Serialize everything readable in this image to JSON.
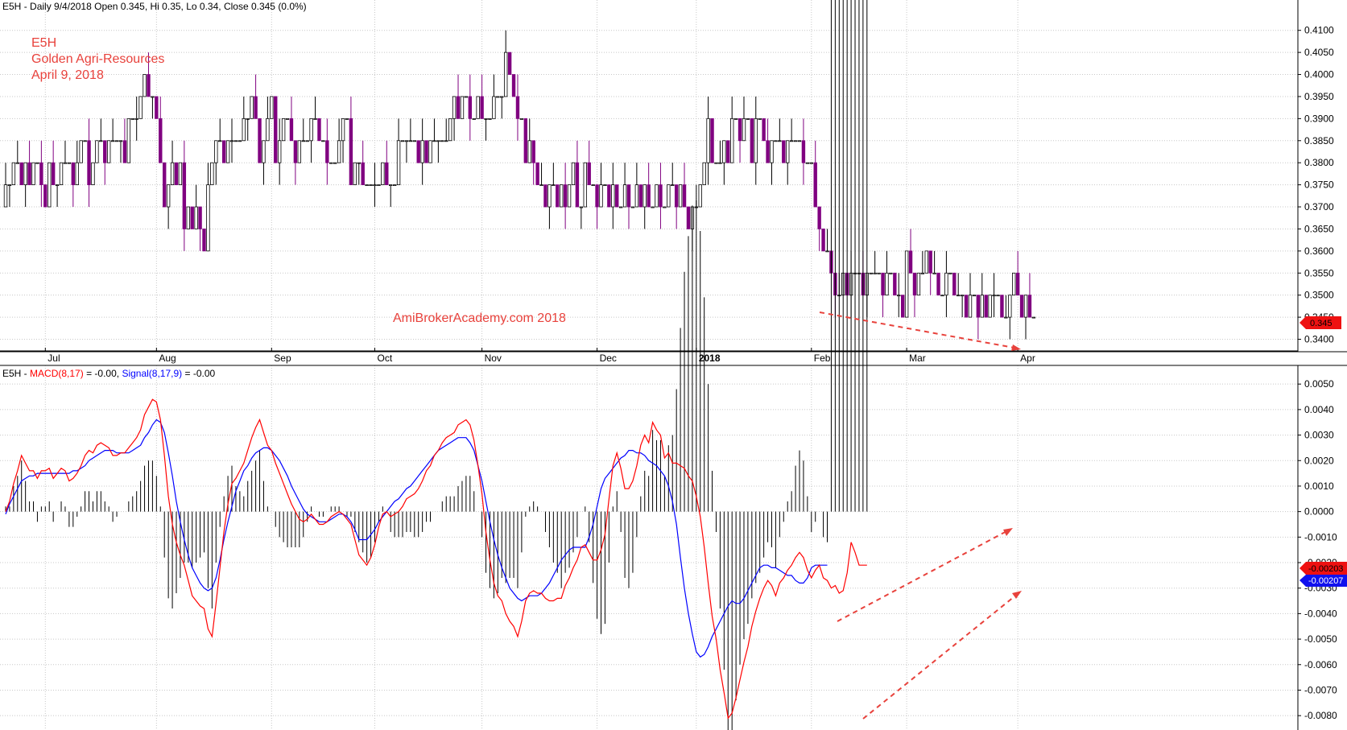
{
  "price_header": {
    "symbol": "E5H",
    "period": "Daily",
    "date": "9/4/2018",
    "open": "Open 0.345,",
    "high": "Hi 0.35,",
    "low": "Lo 0.34,",
    "close": "Close 0.345 (0.0%)"
  },
  "notes": {
    "line1": "E5H",
    "line2": "Golden Agri-Resources",
    "line3": "April 9, 2018",
    "watermark": "AmiBrokerAcademy.com  2018"
  },
  "macd_header": {
    "symbol": "E5H -",
    "macd_label": "MACD(8,17)",
    "macd_value": "= -0.00,",
    "signal_label": "Signal(8,17,9)",
    "signal_value": "= -0.00"
  },
  "price_badge": "0.345",
  "macd_badge": "-0.00203",
  "signal_badge": "-0.00207",
  "colors": {
    "down_bar": "#800080",
    "up_bar": "#000000",
    "macd_line": "#ff0000",
    "signal_line": "#0000ff",
    "histogram": "#000000",
    "grid": "#c8c8c8",
    "annotation": "#e8423c"
  },
  "chart_data": [
    {
      "type": "candlestick",
      "pane": "price",
      "ylim": [
        0.339,
        0.4125
      ],
      "y_ticks": [
        "0.4100",
        "0.4050",
        "0.4000",
        "0.3950",
        "0.3900",
        "0.3850",
        "0.3800",
        "0.3750",
        "0.3700",
        "0.3650",
        "0.3600",
        "0.3550",
        "0.3500",
        "0.3450",
        "0.3400"
      ],
      "x_labels": [
        {
          "label": "Jul",
          "bar": 10
        },
        {
          "label": "Aug",
          "bar": 38
        },
        {
          "label": "Sep",
          "bar": 67
        },
        {
          "label": "Oct",
          "bar": 93
        },
        {
          "label": "Nov",
          "bar": 120
        },
        {
          "label": "Dec",
          "bar": 149
        },
        {
          "label": "2018",
          "bar": 174
        },
        {
          "label": "Feb",
          "bar": 203
        },
        {
          "label": "Mar",
          "bar": 227
        },
        {
          "label": "Apr",
          "bar": 255
        }
      ],
      "closes": [
        0.375,
        0.375,
        0.38,
        0.38,
        0.375,
        0.38,
        0.375,
        0.38,
        0.38,
        0.375,
        0.37,
        0.38,
        0.375,
        0.375,
        0.38,
        0.38,
        0.38,
        0.375,
        0.38,
        0.385,
        0.385,
        0.375,
        0.38,
        0.385,
        0.385,
        0.38,
        0.385,
        0.385,
        0.385,
        0.385,
        0.38,
        0.39,
        0.39,
        0.39,
        0.395,
        0.4,
        0.395,
        0.395,
        0.39,
        0.38,
        0.37,
        0.375,
        0.38,
        0.375,
        0.38,
        0.365,
        0.37,
        0.365,
        0.37,
        0.365,
        0.36,
        0.375,
        0.38,
        0.385,
        0.385,
        0.38,
        0.385,
        0.385,
        0.385,
        0.385,
        0.39,
        0.39,
        0.395,
        0.39,
        0.38,
        0.385,
        0.39,
        0.395,
        0.38,
        0.385,
        0.39,
        0.39,
        0.385,
        0.38,
        0.385,
        0.385,
        0.385,
        0.39,
        0.39,
        0.385,
        0.385,
        0.38,
        0.38,
        0.38,
        0.385,
        0.39,
        0.39,
        0.375,
        0.38,
        0.38,
        0.375,
        0.375,
        0.375,
        0.375,
        0.375,
        0.38,
        0.375,
        0.375,
        0.375,
        0.385,
        0.385,
        0.385,
        0.385,
        0.385,
        0.38,
        0.385,
        0.38,
        0.385,
        0.385,
        0.385,
        0.385,
        0.385,
        0.39,
        0.395,
        0.39,
        0.395,
        0.395,
        0.39,
        0.39,
        0.395,
        0.39,
        0.39,
        0.39,
        0.395,
        0.395,
        0.395,
        0.405,
        0.4,
        0.395,
        0.39,
        0.39,
        0.38,
        0.385,
        0.38,
        0.375,
        0.375,
        0.37,
        0.375,
        0.375,
        0.37,
        0.375,
        0.37,
        0.375,
        0.38,
        0.37,
        0.37,
        0.38,
        0.375,
        0.375,
        0.37,
        0.375,
        0.375,
        0.37,
        0.375,
        0.37,
        0.37,
        0.375,
        0.37,
        0.37,
        0.375,
        0.37,
        0.375,
        0.37,
        0.37,
        0.375,
        0.37,
        0.37,
        0.375,
        0.375,
        0.37,
        0.375,
        0.37,
        0.365,
        0.37,
        0.37,
        0.375,
        0.38,
        0.39,
        0.38,
        0.38,
        0.38,
        0.385,
        0.38,
        0.39,
        0.39,
        0.385,
        0.39,
        0.39,
        0.38,
        0.39,
        0.39,
        0.385,
        0.38,
        0.385,
        0.385,
        0.385,
        0.38,
        0.385,
        0.385,
        0.385,
        0.385,
        0.38,
        0.38,
        0.38,
        0.37,
        0.365,
        0.36,
        0.36,
        0.355,
        0.35,
        0.35,
        0.355,
        0.35,
        0.355,
        0.355,
        0.355,
        0.35,
        0.355,
        0.355,
        0.355,
        0.355,
        0.35,
        0.355,
        0.355,
        0.35,
        0.35,
        0.345,
        0.36,
        0.355,
        0.35,
        0.355,
        0.355,
        0.36,
        0.355,
        0.355,
        0.35,
        0.35,
        0.355,
        0.355,
        0.35,
        0.35,
        0.35,
        0.345,
        0.35,
        0.35,
        0.345,
        0.35,
        0.345,
        0.35,
        0.35,
        0.35,
        0.345,
        0.345,
        0.35,
        0.355,
        0.35,
        0.345,
        0.35,
        0.345,
        0.345
      ]
    },
    {
      "type": "line",
      "pane": "macd",
      "ylim": [
        -0.0085,
        0.0057
      ],
      "y_ticks": [
        "0.0050",
        "0.0040",
        "0.0030",
        "0.0020",
        "0.0010",
        "0.0000",
        "-0.0010",
        "-0.0020",
        "-0.0030",
        "-0.0040",
        "-0.0050",
        "-0.0060",
        "-0.0070",
        "-0.0080"
      ],
      "series": [
        {
          "name": "MACD(8,17)",
          "values": [
            0.0,
            0.0004,
            0.0011,
            0.0016,
            0.0022,
            0.0019,
            0.0016,
            0.0016,
            0.0013,
            0.0016,
            0.0016,
            0.0017,
            0.0013,
            0.0015,
            0.0017,
            0.0016,
            0.0012,
            0.0013,
            0.0015,
            0.0018,
            0.0022,
            0.0024,
            0.0023,
            0.0026,
            0.0027,
            0.0026,
            0.0025,
            0.0022,
            0.0022,
            0.0023,
            0.0023,
            0.0025,
            0.0027,
            0.0029,
            0.0032,
            0.0038,
            0.0041,
            0.0044,
            0.0043,
            0.0036,
            0.0022,
            0.0006,
            -0.0005,
            -0.0012,
            -0.0017,
            -0.0021,
            -0.0027,
            -0.0033,
            -0.0035,
            -0.0037,
            -0.0038,
            -0.0046,
            -0.0049,
            -0.0036,
            -0.0022,
            -0.0008,
            0.0003,
            0.0011,
            0.0013,
            0.0016,
            0.0019,
            0.0024,
            0.0029,
            0.0033,
            0.0036,
            0.0031,
            0.0026,
            0.0024,
            0.0019,
            0.0015,
            0.0011,
            0.0007,
            0.0003,
            0.0,
            -0.0003,
            -0.0004,
            -0.0003,
            -0.0001,
            -0.0003,
            -0.0005,
            -0.0005,
            -0.0004,
            -0.0002,
            -0.0001,
            0.0,
            -0.0001,
            -0.0003,
            -0.0005,
            -0.0011,
            -0.0017,
            -0.0019,
            -0.0021,
            -0.0018,
            -0.0013,
            -0.0006,
            -0.0001,
            0.0,
            -0.0002,
            -0.0001,
            0.0,
            0.0002,
            0.0005,
            0.0006,
            0.0007,
            0.0009,
            0.0012,
            0.0016,
            0.0018,
            0.0022,
            0.0024,
            0.0027,
            0.0029,
            0.003,
            0.0031,
            0.0034,
            0.0035,
            0.0036,
            0.0034,
            0.0028,
            0.0018,
            0.0007,
            -0.0008,
            -0.0019,
            -0.0028,
            -0.0033,
            -0.0035,
            -0.004,
            -0.0043,
            -0.0045,
            -0.0049,
            -0.0043,
            -0.0035,
            -0.0032,
            -0.0031,
            -0.0032,
            -0.0032,
            -0.0034,
            -0.0035,
            -0.0035,
            -0.0034,
            -0.0034,
            -0.0029,
            -0.0026,
            -0.0022,
            -0.0019,
            -0.0014,
            -0.0013,
            -0.0016,
            -0.0019,
            -0.0019,
            -0.0015,
            -0.0009,
            0.0005,
            0.0018,
            0.0023,
            0.0017,
            0.0009,
            0.0009,
            0.0012,
            0.0018,
            0.0026,
            0.003,
            0.0027,
            0.0035,
            0.0032,
            0.003,
            0.0021,
            0.0023,
            0.0019,
            0.0019,
            0.0018,
            0.0017,
            0.0014,
            0.0012,
            0.0006,
            -0.0002,
            -0.0014,
            -0.0028,
            -0.0041,
            -0.005,
            -0.0062,
            -0.0071,
            -0.0081,
            -0.0079,
            -0.0073,
            -0.0066,
            -0.0059,
            -0.0053,
            -0.0045,
            -0.0039,
            -0.0034,
            -0.003,
            -0.0027,
            -0.0029,
            -0.0033,
            -0.0028,
            -0.0026,
            -0.0023,
            -0.0021,
            -0.0018,
            -0.0016,
            -0.0018,
            -0.0023,
            -0.0026,
            -0.0023,
            -0.0021,
            -0.0026,
            -0.0027,
            -0.003,
            -0.0029,
            -0.0032,
            -0.0031,
            -0.0024,
            -0.0012,
            -0.0016,
            -0.0021,
            -0.0021,
            -0.0021
          ]
        },
        {
          "name": "Signal(8,17,9)",
          "values": [
            -0.0001,
            0.0003,
            0.0006,
            0.0009,
            0.0012,
            0.0013,
            0.0014,
            0.0014,
            0.0015,
            0.0015,
            0.0015,
            0.0015,
            0.0015,
            0.0015,
            0.0015,
            0.0015,
            0.0015,
            0.0016,
            0.0016,
            0.0017,
            0.0018,
            0.002,
            0.0021,
            0.0022,
            0.0023,
            0.0024,
            0.0024,
            0.0024,
            0.0023,
            0.0023,
            0.0023,
            0.0023,
            0.0024,
            0.0025,
            0.0026,
            0.0029,
            0.0031,
            0.0034,
            0.0036,
            0.0035,
            0.0031,
            0.0023,
            0.0014,
            0.0004,
            -0.0004,
            -0.0011,
            -0.0017,
            -0.0022,
            -0.0025,
            -0.0028,
            -0.003,
            -0.0031,
            -0.003,
            -0.0026,
            -0.0019,
            -0.0011,
            -0.0004,
            0.0002,
            0.0008,
            0.0012,
            0.0016,
            0.0018,
            0.0021,
            0.0023,
            0.0024,
            0.0025,
            0.0025,
            0.0024,
            0.0022,
            0.002,
            0.0017,
            0.0014,
            0.001,
            0.0007,
            0.0004,
            0.0001,
            -0.0001,
            -0.0002,
            -0.0003,
            -0.0004,
            -0.0004,
            -0.0004,
            -0.0003,
            -0.0002,
            -0.0001,
            -0.0001,
            -0.0002,
            -0.0004,
            -0.0007,
            -0.0011,
            -0.0011,
            -0.0011,
            -0.0009,
            -0.0007,
            -0.0004,
            -0.0002,
            0.0,
            0.0002,
            0.0004,
            0.0005,
            0.0007,
            0.0009,
            0.001,
            0.0012,
            0.0014,
            0.0016,
            0.0018,
            0.002,
            0.0022,
            0.0024,
            0.0025,
            0.0026,
            0.0027,
            0.0028,
            0.0029,
            0.0029,
            0.0029,
            0.0027,
            0.0024,
            0.0018,
            0.0012,
            0.0004,
            -0.0004,
            -0.0011,
            -0.0017,
            -0.0022,
            -0.0026,
            -0.003,
            -0.0032,
            -0.0034,
            -0.0035,
            -0.0034,
            -0.0033,
            -0.0033,
            -0.0033,
            -0.0032,
            -0.003,
            -0.0028,
            -0.0025,
            -0.0022,
            -0.0019,
            -0.0017,
            -0.0015,
            -0.0014,
            -0.0014,
            -0.0014,
            -0.0014,
            -0.001,
            -0.0005,
            0.0002,
            0.0009,
            0.0013,
            0.0015,
            0.0017,
            0.0019,
            0.0021,
            0.0022,
            0.0024,
            0.0024,
            0.0023,
            0.0023,
            0.0022,
            0.002,
            0.0019,
            0.0018,
            0.0016,
            0.0014,
            0.001,
            0.0004,
            -0.0005,
            -0.0018,
            -0.003,
            -0.004,
            -0.0048,
            -0.0055,
            -0.0057,
            -0.0056,
            -0.0053,
            -0.0049,
            -0.0046,
            -0.0043,
            -0.004,
            -0.0037,
            -0.0035,
            -0.0036,
            -0.0036,
            -0.0034,
            -0.0031,
            -0.0028,
            -0.0025,
            -0.0022,
            -0.0021,
            -0.0021,
            -0.0022,
            -0.0022,
            -0.0023,
            -0.0024,
            -0.0025,
            -0.0025,
            -0.0027,
            -0.0028,
            -0.0028,
            -0.0026,
            -0.0022,
            -0.0021,
            -0.0021,
            -0.0021,
            -0.0021
          ]
        }
      ]
    }
  ]
}
